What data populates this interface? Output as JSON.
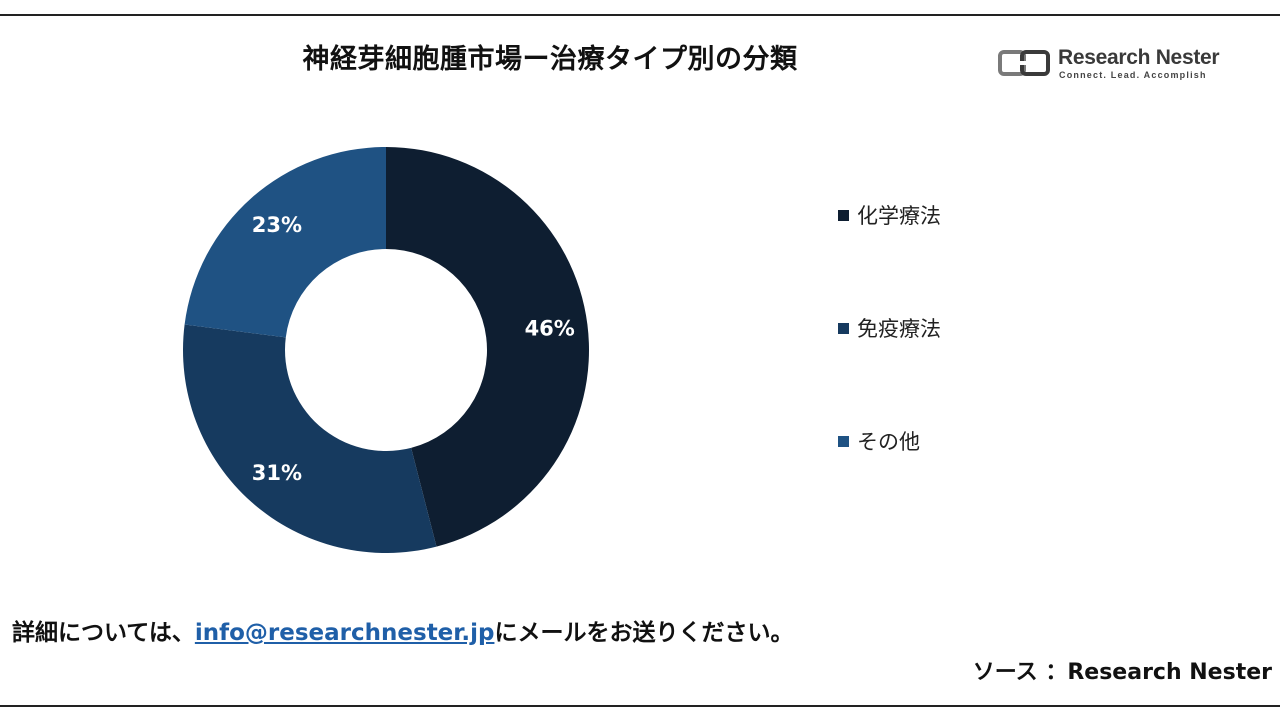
{
  "chart_data": {
    "type": "pie",
    "variant": "donut",
    "title": "神経芽細胞腫市場ー治療タイプ別の分類",
    "categories": [
      "化学療法",
      "免疫療法",
      "その他"
    ],
    "values": [
      46,
      31,
      23
    ],
    "data_labels": [
      "46%",
      "31%",
      "23%"
    ],
    "colors": [
      "#0e1e31",
      "#163a5f",
      "#1f5283"
    ],
    "legend_position": "right"
  },
  "logo": {
    "name": "Research Nester",
    "tagline": "Connect. Lead. Accomplish"
  },
  "footer": {
    "prefix": "詳細については、",
    "email": "info@researchnester.jp",
    "suffix": "にメールをお送りください。"
  },
  "source": "ソース ：Research Nester"
}
